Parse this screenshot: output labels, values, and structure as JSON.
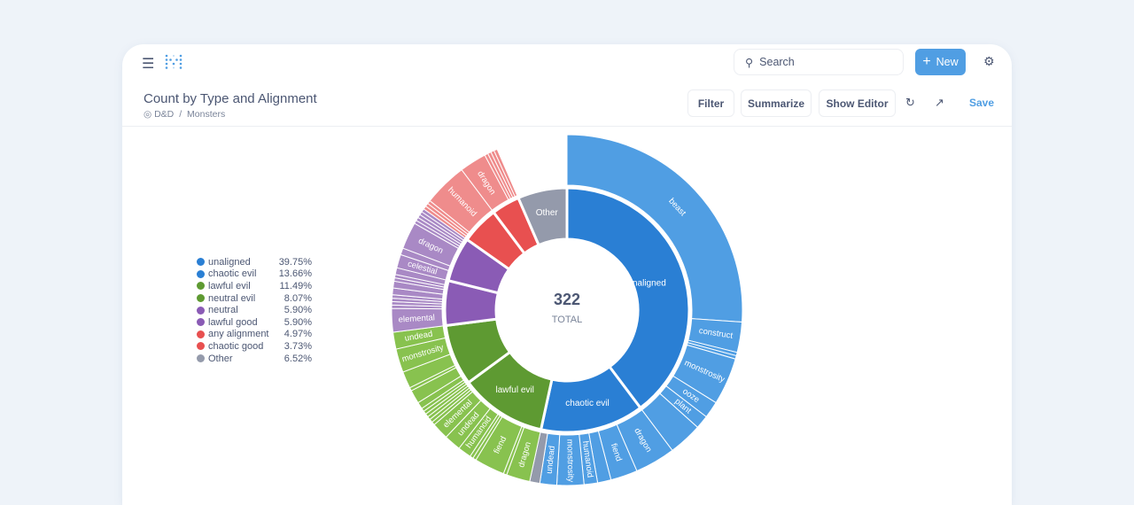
{
  "topbar": {
    "search_placeholder": "Search",
    "new_label": "New"
  },
  "header": {
    "title": "Count by Type and Alignment",
    "breadcrumb": [
      "D&D",
      "Monsters"
    ],
    "breadcrumb_sep": "/",
    "filter": "Filter",
    "summarize": "Summarize",
    "show_editor": "Show Editor",
    "save": "Save"
  },
  "colors": {
    "accent": "#509ee3"
  },
  "legend": [
    {
      "name": "unaligned",
      "pct": "39.75%",
      "color": "#2a7fd4"
    },
    {
      "name": "chaotic evil",
      "pct": "13.66%",
      "color": "#2a7fd4"
    },
    {
      "name": "lawful evil",
      "pct": "11.49%",
      "color": "#5e9a32"
    },
    {
      "name": "neutral evil",
      "pct": "8.07%",
      "color": "#5e9a32"
    },
    {
      "name": "neutral",
      "pct": "5.90%",
      "color": "#8a5bb5"
    },
    {
      "name": "lawful good",
      "pct": "5.90%",
      "color": "#8a5bb5"
    },
    {
      "name": "any alignment",
      "pct": "4.97%",
      "color": "#e85050"
    },
    {
      "name": "chaotic good",
      "pct": "3.73%",
      "color": "#e85050"
    },
    {
      "name": "Other",
      "pct": "6.52%",
      "color": "#949aab"
    }
  ],
  "chart_data": {
    "type": "sunburst",
    "total": 322,
    "total_label": "TOTAL",
    "inner": [
      {
        "name": "unaligned",
        "value": 128,
        "color": "#2a7fd4",
        "outer_color": "#509ee3",
        "label": true,
        "children": [
          [
            "beast",
            84
          ],
          [
            "construct",
            9
          ],
          [
            "",
            1
          ],
          [
            "",
            1
          ],
          [
            "monstrosity",
            14
          ],
          [
            "ooze",
            5
          ],
          [
            "plant",
            4
          ],
          [
            "",
            10
          ]
        ]
      },
      {
        "name": "chaotic evil",
        "value": 44,
        "color": "#2a7fd4",
        "outer_color": "#509ee3",
        "label": true,
        "children": [
          [
            "dragon",
            12
          ],
          [
            "fiend",
            8
          ],
          [
            "",
            4
          ],
          [
            "humanoid",
            4
          ],
          [
            "monstrosity",
            8
          ],
          [
            "undead",
            5
          ],
          [
            "",
            3,
            "#949aab"
          ]
        ]
      },
      {
        "name": "lawful evil",
        "value": 37,
        "color": "#5e9a32",
        "outer_color": "#88c24f",
        "label": true,
        "children": [
          [
            "dragon",
            7
          ],
          [
            "",
            1
          ],
          [
            "fiend",
            9
          ],
          [
            "",
            1
          ],
          [
            "",
            1
          ],
          [
            "humanoid",
            4
          ],
          [
            "undead",
            5
          ],
          [
            "elemental",
            5
          ],
          [
            "",
            1
          ],
          [
            "",
            1
          ],
          [
            "",
            1
          ],
          [
            "",
            1
          ]
        ]
      },
      {
        "name": "neutral evil",
        "value": 26,
        "color": "#5e9a32",
        "outer_color": "#88c24f",
        "label": false,
        "children": [
          [
            "",
            1
          ],
          [
            "",
            1
          ],
          [
            "",
            2
          ],
          [
            "",
            4
          ],
          [
            "",
            1
          ],
          [
            "",
            5
          ],
          [
            "monstrosity",
            7
          ],
          [
            "undead",
            5
          ]
        ]
      },
      {
        "name": "neutral",
        "value": 19,
        "color": "#8a5bb5",
        "outer_color": "#a989c5",
        "label": false,
        "children": [
          [
            "elemental",
            7
          ],
          [
            "",
            1
          ],
          [
            "",
            1
          ],
          [
            "",
            1
          ],
          [
            "",
            1
          ],
          [
            "",
            2
          ],
          [
            "",
            2
          ],
          [
            "",
            1
          ],
          [
            "",
            1
          ],
          [
            "",
            2
          ]
        ]
      },
      {
        "name": "lawful good",
        "value": 19,
        "color": "#8a5bb5",
        "outer_color": "#a989c5",
        "label": false,
        "children": [
          [
            "celestial",
            4
          ],
          [
            "",
            2
          ],
          [
            "dragon",
            8
          ],
          [
            "",
            1
          ],
          [
            "",
            1
          ],
          [
            "",
            1
          ],
          [
            "",
            1
          ],
          [
            "",
            1
          ]
        ]
      },
      {
        "name": "any alignment",
        "value": 16,
        "color": "#e85050",
        "outer_color": "#ef8c8c",
        "label": false,
        "children": [
          [
            "",
            1
          ],
          [
            "",
            1
          ],
          [
            "",
            1
          ],
          [
            "humanoid",
            13
          ]
        ]
      },
      {
        "name": "chaotic good",
        "value": 12,
        "color": "#e85050",
        "outer_color": "#ef8c8c",
        "label": false,
        "children": [
          [
            "dragon",
            8
          ],
          [
            "",
            1
          ],
          [
            "",
            1
          ],
          [
            "",
            1
          ],
          [
            "",
            1
          ]
        ]
      },
      {
        "name": "Other",
        "value": 21,
        "color": "#949aab",
        "label": true,
        "children": []
      }
    ]
  }
}
